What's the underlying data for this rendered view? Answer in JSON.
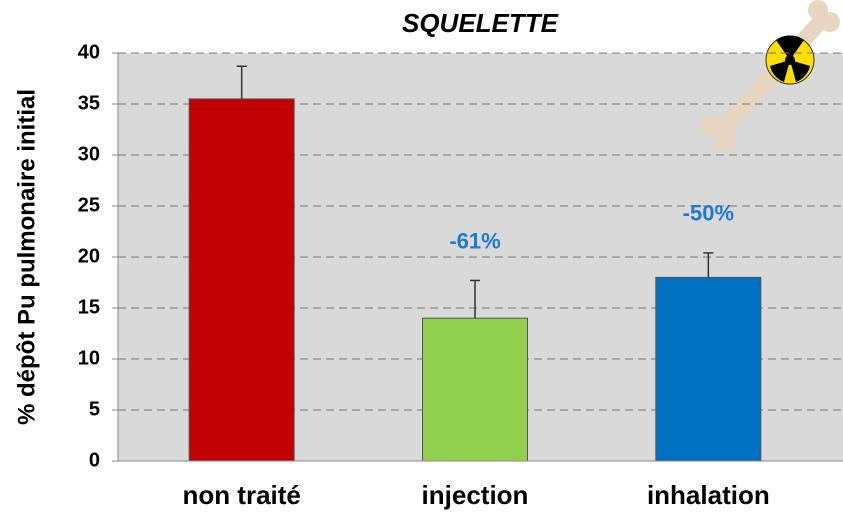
{
  "chart_data": {
    "type": "bar",
    "title": "SQUELETTE",
    "y_label": "% dépôt Pu pulmonaire initial",
    "categories": [
      "non traité",
      "injection",
      "inhalation"
    ],
    "values": [
      35.5,
      14,
      18
    ],
    "errors": [
      3.2,
      3.7,
      2.4
    ],
    "colors": [
      "#c00000",
      "#92d050",
      "#0070c0"
    ],
    "annotations": [
      "-61%",
      "-50%"
    ],
    "ylim": [
      0,
      40
    ],
    "yticks": [
      0,
      5,
      10,
      15,
      20,
      25,
      30,
      35,
      40
    ],
    "grid": true
  }
}
